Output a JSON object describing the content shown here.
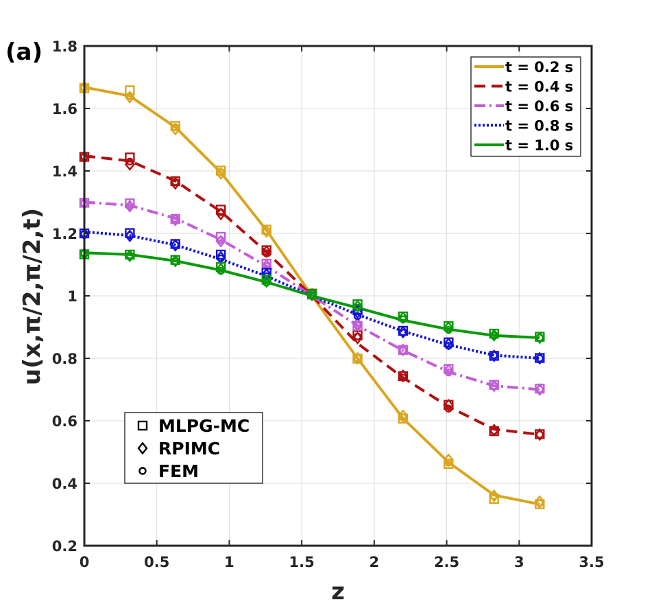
{
  "chart_data": {
    "type": "line",
    "panel_label": "(a)",
    "title": "",
    "xlabel": "z",
    "ylabel": "u(x,π/2,π/2,t)",
    "xlim": [
      0,
      3.5
    ],
    "ylim": [
      0.2,
      1.8
    ],
    "x_ticks": [
      "0",
      "0.5",
      "1",
      "1.5",
      "2",
      "2.5",
      "3",
      "3.5"
    ],
    "y_ticks": [
      "0.2",
      "0.4",
      "0.6",
      "0.8",
      "1",
      "1.2",
      "1.4",
      "1.6",
      "1.8"
    ],
    "grid": true,
    "legend_position": "top-right",
    "x": [
      0,
      0.314,
      0.628,
      0.942,
      1.257,
      1.571,
      1.885,
      2.199,
      2.513,
      2.827,
      3.142
    ],
    "series": [
      {
        "name": "t = 0.2 s",
        "color": "#DAA520",
        "dash": "solid",
        "line": [
          1.668,
          1.64,
          1.54,
          1.395,
          1.21,
          1.0,
          0.8,
          0.608,
          0.467,
          0.362,
          0.333
        ],
        "mlpg": [
          1.665,
          1.658,
          1.544,
          1.401,
          1.212,
          1.008,
          0.799,
          0.607,
          0.462,
          0.35,
          0.333
        ],
        "rpimc": [
          1.668,
          1.636,
          1.534,
          1.392,
          1.206,
          1.003,
          0.8,
          0.616,
          0.475,
          0.36,
          0.341
        ],
        "fem": [
          1.666,
          1.64,
          1.54,
          1.396,
          1.208,
          1.0,
          0.801,
          0.611,
          0.466,
          0.36,
          0.336
        ]
      },
      {
        "name": "t = 0.4 s",
        "color": "#B01010",
        "dash": "dashed",
        "line": [
          1.448,
          1.432,
          1.368,
          1.27,
          1.14,
          1.0,
          0.848,
          0.738,
          0.645,
          0.573,
          0.556
        ],
        "mlpg": [
          1.445,
          1.443,
          1.367,
          1.276,
          1.146,
          1.006,
          0.874,
          0.743,
          0.651,
          0.567,
          0.557
        ],
        "rpimc": [
          1.444,
          1.421,
          1.36,
          1.262,
          1.142,
          1.004,
          0.865,
          0.744,
          0.65,
          0.57,
          0.556
        ],
        "fem": [
          1.446,
          1.43,
          1.365,
          1.268,
          1.136,
          1.0,
          0.87,
          0.738,
          0.639,
          0.567,
          0.556
        ]
      },
      {
        "name": "t = 0.6 s",
        "color": "#C15FD6",
        "dash": "dashdot",
        "line": [
          1.3,
          1.29,
          1.248,
          1.18,
          1.095,
          1.0,
          0.905,
          0.825,
          0.757,
          0.712,
          0.7
        ],
        "mlpg": [
          1.298,
          1.296,
          1.246,
          1.189,
          1.103,
          1.004,
          0.904,
          0.827,
          0.766,
          0.715,
          0.703
        ],
        "rpimc": [
          1.298,
          1.287,
          1.243,
          1.175,
          1.098,
          1.003,
          0.91,
          0.827,
          0.762,
          0.712,
          0.7
        ],
        "fem": [
          1.296,
          1.288,
          1.247,
          1.179,
          1.095,
          1.0,
          0.905,
          0.825,
          0.755,
          0.712,
          0.701
        ]
      },
      {
        "name": "t = 0.8 s",
        "color": "#1414D8",
        "dash": "dotted",
        "line": [
          1.205,
          1.193,
          1.163,
          1.117,
          1.063,
          1.0,
          0.94,
          0.887,
          0.843,
          0.81,
          0.8
        ],
        "mlpg": [
          1.2,
          1.201,
          1.166,
          1.132,
          1.074,
          1.006,
          0.954,
          0.888,
          0.851,
          0.808,
          0.801
        ],
        "rpimc": [
          1.198,
          1.192,
          1.162,
          1.124,
          1.069,
          1.004,
          0.947,
          0.884,
          0.846,
          0.808,
          0.8
        ],
        "fem": [
          1.199,
          1.194,
          1.164,
          1.12,
          1.063,
          1.0,
          0.935,
          0.882,
          0.84,
          0.81,
          0.8
        ]
      },
      {
        "name": "t = 1.0 s",
        "color": "#0A9A0A",
        "dash": "solid",
        "line": [
          1.138,
          1.132,
          1.112,
          1.082,
          1.044,
          1.0,
          0.962,
          0.922,
          0.893,
          0.873,
          0.866
        ],
        "mlpg": [
          1.133,
          1.132,
          1.115,
          1.092,
          1.052,
          1.006,
          0.973,
          0.934,
          0.903,
          0.879,
          0.869
        ],
        "rpimc": [
          1.135,
          1.128,
          1.112,
          1.086,
          1.046,
          1.003,
          0.967,
          0.93,
          0.898,
          0.874,
          0.866
        ],
        "fem": [
          1.137,
          1.13,
          1.111,
          1.08,
          1.042,
          0.999,
          0.962,
          0.925,
          0.891,
          0.872,
          0.866
        ]
      }
    ],
    "marker_legend": [
      {
        "shape": "square",
        "label": "MLPG-MC"
      },
      {
        "shape": "diamond",
        "label": "RPIMC"
      },
      {
        "shape": "circle",
        "label": "FEM"
      }
    ]
  }
}
